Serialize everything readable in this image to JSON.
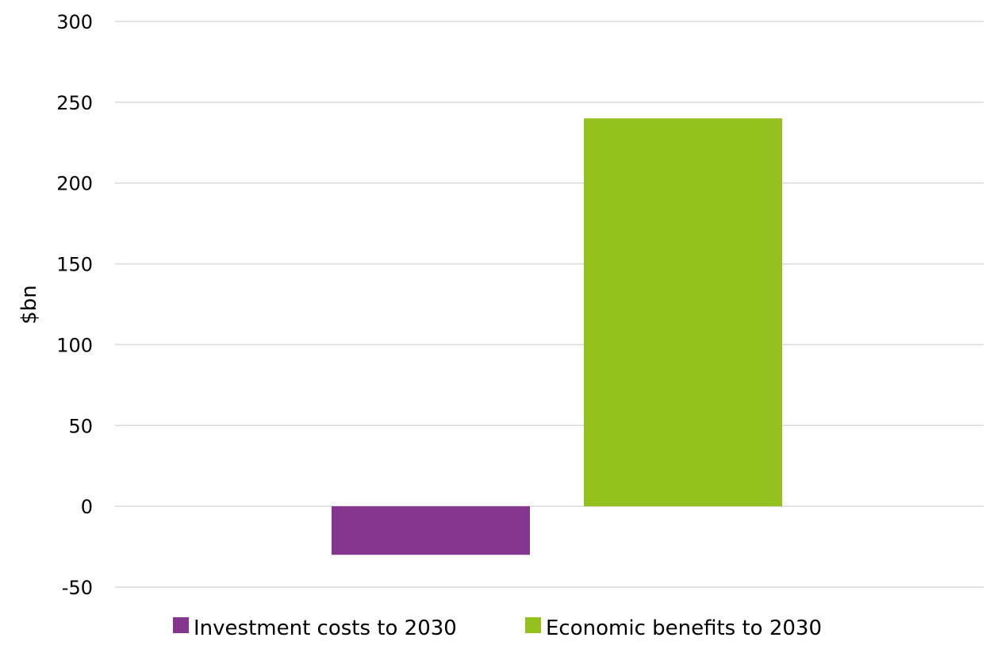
{
  "chart_data": {
    "type": "bar",
    "title": "",
    "xlabel": "",
    "ylabel": "$bn",
    "ylim": [
      -50,
      300
    ],
    "yticks": [
      -50,
      0,
      50,
      100,
      150,
      200,
      250,
      300
    ],
    "grid": true,
    "legend_position": "bottom",
    "series": [
      {
        "name": "Investment costs to 2030",
        "value": -30,
        "color": "#84358E"
      },
      {
        "name": "Economic benefits to 2030",
        "value": 240,
        "color": "#95C11F"
      }
    ]
  }
}
